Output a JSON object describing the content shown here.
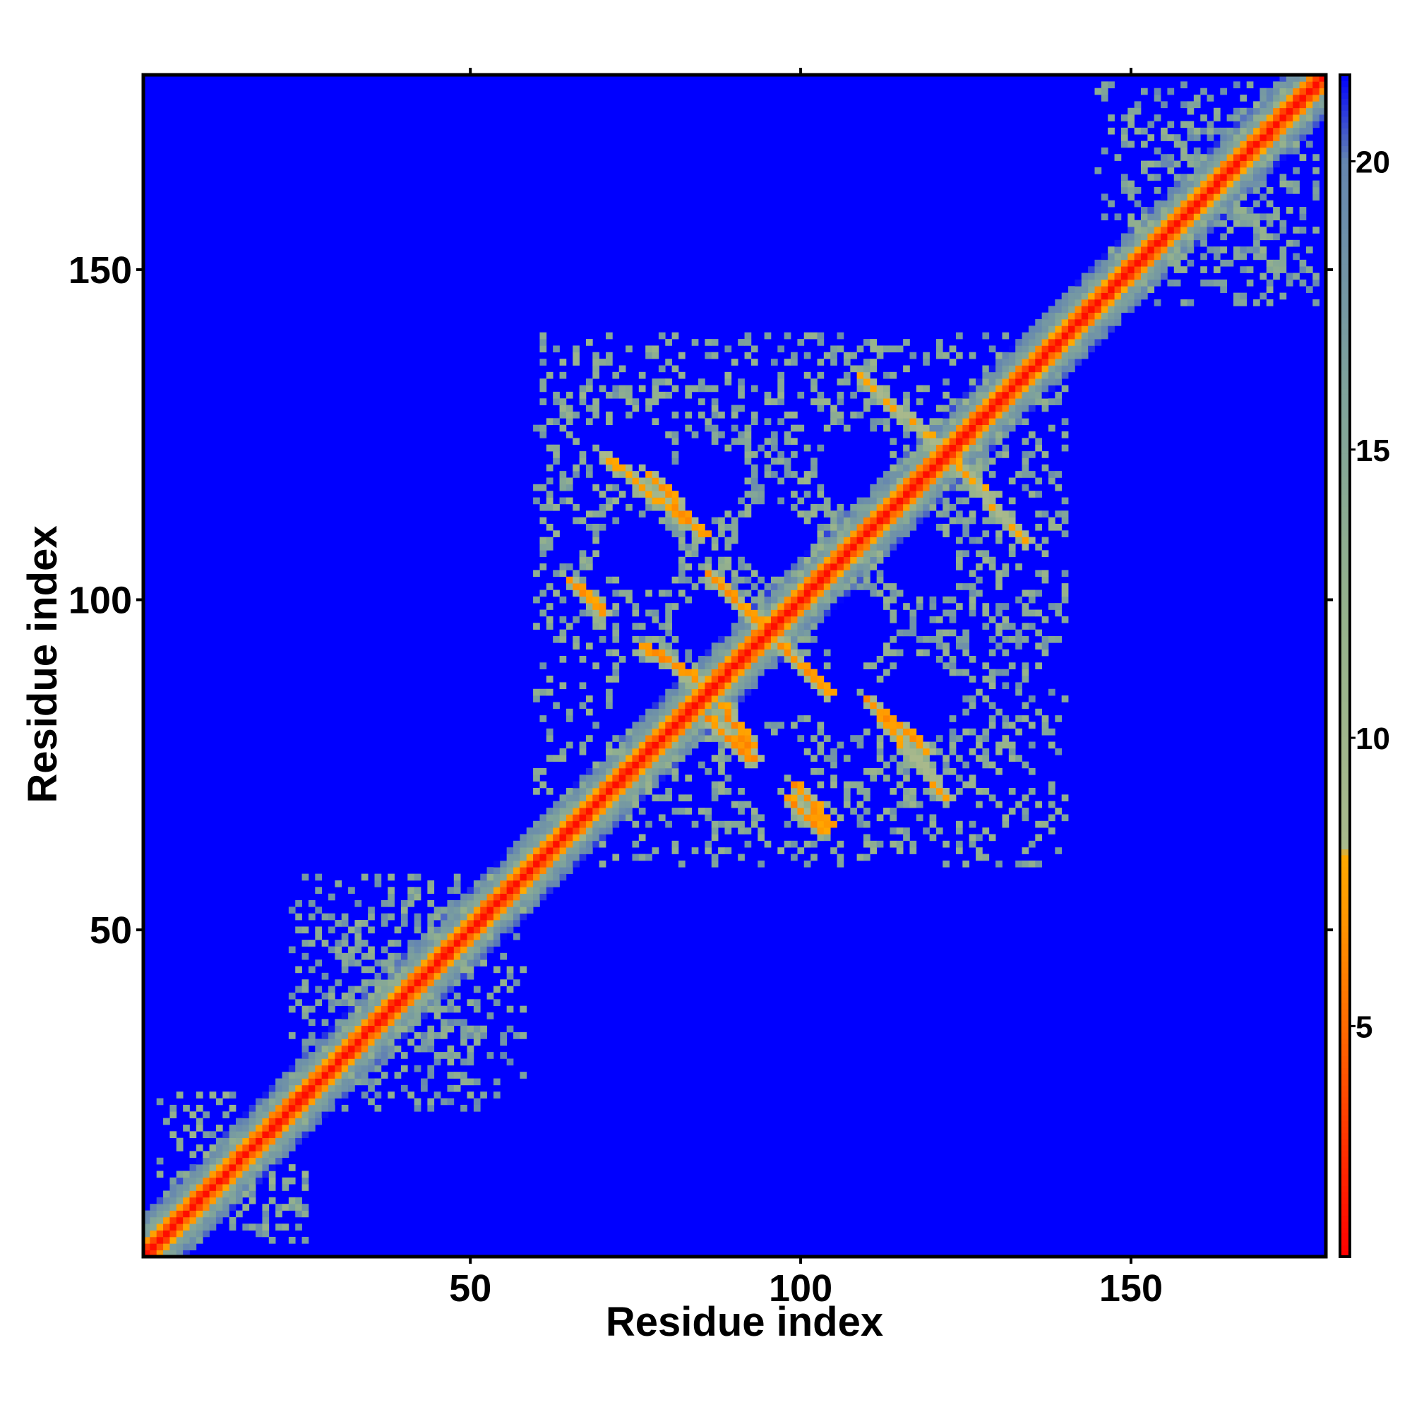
{
  "chart_data": {
    "type": "heatmap",
    "title": "",
    "xlabel": "Residue index",
    "ylabel": "Residue index",
    "xlim": [
      1,
      179
    ],
    "ylim": [
      1,
      179
    ],
    "xticks": [
      50,
      100,
      150
    ],
    "yticks": [
      50,
      100,
      150
    ],
    "xtick_labels": [
      "50",
      "100",
      "150"
    ],
    "ytick_labels": [
      "50",
      "100",
      "150"
    ],
    "colorbar": {
      "ticks": [
        5,
        10,
        15,
        20
      ],
      "tick_labels": [
        "5",
        "10",
        "15",
        "20"
      ],
      "range": [
        1,
        21.5
      ],
      "stops": [
        {
          "value": 1.0,
          "color": "#ff0000"
        },
        {
          "value": 3.0,
          "color": "#ff3300"
        },
        {
          "value": 5.0,
          "color": "#ff6a00"
        },
        {
          "value": 7.0,
          "color": "#ff9900"
        },
        {
          "value": 8.0,
          "color": "#ffaa00"
        },
        {
          "value": 8.05,
          "color": "#a9b98c"
        },
        {
          "value": 12.0,
          "color": "#96b28c"
        },
        {
          "value": 16.0,
          "color": "#7fa39b"
        },
        {
          "value": 20.0,
          "color": "#6586b0"
        },
        {
          "value": 21.5,
          "color": "#0000ff"
        }
      ]
    },
    "background_value": 21.5,
    "background_color": "#0000ff",
    "grid": false,
    "legend": "colorbar-right",
    "diagonal": {
      "start": 1,
      "end": 179,
      "value": 1.5
    },
    "features": [
      {
        "kind": "near-diagonal-band",
        "from": 1,
        "to": 179,
        "width": 6,
        "value": 8
      },
      {
        "kind": "contact-block",
        "x": [
          3,
          25
        ],
        "y": [
          3,
          25
        ],
        "value": 11
      },
      {
        "kind": "contact-block",
        "x": [
          23,
          58
        ],
        "y": [
          23,
          58
        ],
        "value": 12
      },
      {
        "kind": "contact-block",
        "x": [
          145,
          178
        ],
        "y": [
          145,
          178
        ],
        "value": 12
      },
      {
        "kind": "contact-block",
        "x": [
          60,
          140
        ],
        "y": [
          60,
          140
        ],
        "value": 11
      },
      {
        "kind": "strand-pair",
        "x": [
          70,
          82
        ],
        "y": [
          112,
          122
        ],
        "value": 7
      },
      {
        "kind": "strand-pair",
        "x": [
          112,
          122
        ],
        "y": [
          70,
          82
        ],
        "value": 7
      },
      {
        "kind": "strand-pair",
        "x": [
          109,
          122
        ],
        "y": [
          122,
          134
        ],
        "value": 7
      },
      {
        "kind": "strand-pair",
        "x": [
          122,
          134
        ],
        "y": [
          109,
          122
        ],
        "value": 7
      },
      {
        "kind": "strand-pair",
        "x": [
          86,
          95
        ],
        "y": [
          95,
          104
        ],
        "value": 6
      },
      {
        "kind": "strand-pair",
        "x": [
          95,
          104
        ],
        "y": [
          86,
          95
        ],
        "value": 6
      },
      {
        "kind": "strand-pair",
        "x": [
          65,
          70
        ],
        "y": [
          98,
          103
        ],
        "value": 6
      },
      {
        "kind": "strand-pair",
        "x": [
          98,
          103
        ],
        "y": [
          65,
          70
        ],
        "value": 6
      },
      {
        "kind": "strand-pair",
        "x": [
          76,
          84
        ],
        "y": [
          88,
          93
        ],
        "value": 6
      },
      {
        "kind": "strand-pair",
        "x": [
          88,
          93
        ],
        "y": [
          76,
          84
        ],
        "value": 6
      },
      {
        "kind": "strand-pair",
        "x": [
          86,
          92
        ],
        "y": [
          76,
          82
        ],
        "value": 6
      },
      {
        "kind": "strand-pair",
        "x": [
          99,
          104
        ],
        "y": [
          66,
          72
        ],
        "value": 6
      },
      {
        "kind": "strand-pair",
        "x": [
          110,
          119
        ],
        "y": [
          77,
          85
        ],
        "value": 6
      },
      {
        "kind": "strand-pair",
        "x": [
          77,
          85
        ],
        "y": [
          110,
          119
        ],
        "value": 6
      }
    ],
    "holes": [
      {
        "x": 76,
        "y": 107
      },
      {
        "x": 96,
        "y": 109
      },
      {
        "x": 118,
        "y": 106
      },
      {
        "x": 87,
        "y": 96
      },
      {
        "x": 108,
        "y": 96
      },
      {
        "x": 96,
        "y": 87
      },
      {
        "x": 77,
        "y": 85
      },
      {
        "x": 107,
        "y": 85
      },
      {
        "x": 118,
        "y": 86
      },
      {
        "x": 96,
        "y": 74
      },
      {
        "x": 86,
        "y": 118
      },
      {
        "x": 108,
        "y": 120
      },
      {
        "x": 75,
        "y": 122
      }
    ]
  }
}
